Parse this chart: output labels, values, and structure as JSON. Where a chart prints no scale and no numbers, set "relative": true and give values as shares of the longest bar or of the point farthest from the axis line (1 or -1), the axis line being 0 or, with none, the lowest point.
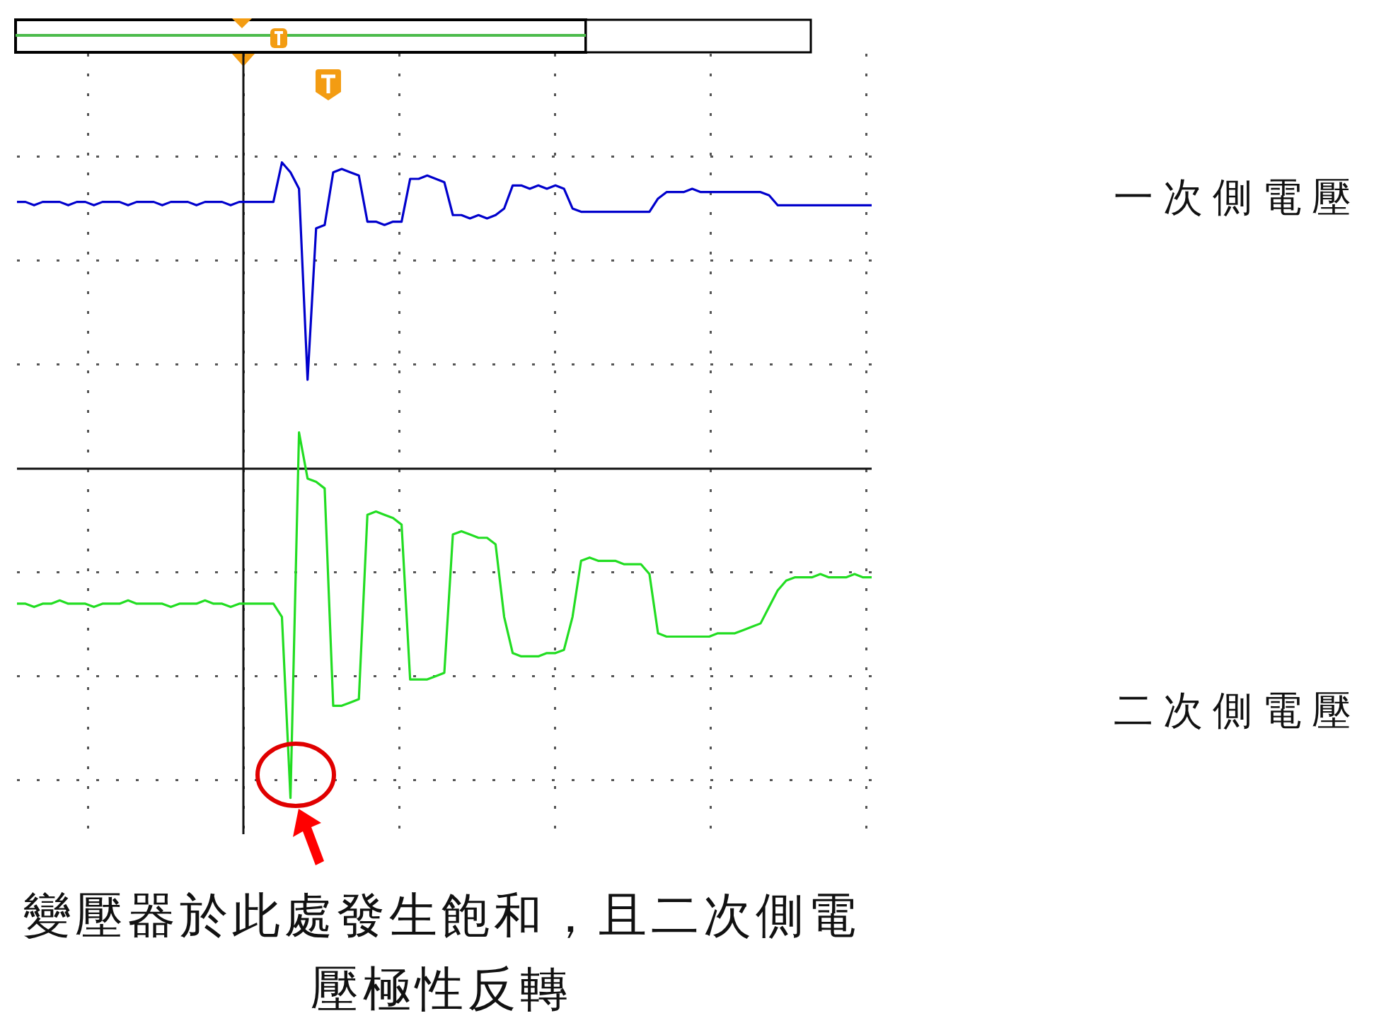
{
  "chart_data": {
    "type": "line",
    "relative": true,
    "grid": true,
    "categories": [
      null,
      null,
      null,
      null,
      null,
      null,
      null,
      null,
      null,
      null,
      null,
      null,
      null,
      null,
      null,
      null,
      null,
      null,
      null,
      null,
      null,
      null,
      null,
      null,
      null,
      null,
      null,
      null,
      null,
      null,
      null,
      null,
      null,
      null,
      null,
      null,
      null,
      null,
      null,
      null,
      null,
      null,
      null,
      null,
      null,
      null,
      null,
      null,
      null,
      null,
      null,
      null,
      null,
      null,
      null,
      null,
      null,
      null,
      null,
      null,
      null,
      null,
      null,
      null,
      null,
      null,
      null,
      null,
      null,
      null,
      null,
      null,
      null,
      null,
      null,
      null,
      null,
      null,
      null,
      null,
      null,
      null,
      null,
      null,
      null,
      null,
      null,
      null,
      null,
      null,
      null,
      null,
      null,
      null,
      null,
      null,
      null,
      null,
      null,
      null,
      null
    ],
    "series": [
      {
        "name": "一次側電壓",
        "color": "#0000cc",
        "values": [
          0.81,
          0.81,
          0.8,
          0.81,
          0.81,
          0.81,
          0.8,
          0.81,
          0.81,
          0.8,
          0.81,
          0.81,
          0.81,
          0.8,
          0.81,
          0.81,
          0.81,
          0.8,
          0.81,
          0.81,
          0.81,
          0.8,
          0.81,
          0.81,
          0.81,
          0.8,
          0.81,
          0.81,
          0.81,
          0.81,
          0.81,
          0.93,
          0.9,
          0.85,
          0.27,
          0.73,
          0.74,
          0.9,
          0.91,
          0.9,
          0.89,
          0.75,
          0.75,
          0.74,
          0.75,
          0.75,
          0.88,
          0.88,
          0.89,
          0.88,
          0.87,
          0.77,
          0.77,
          0.76,
          0.77,
          0.76,
          0.77,
          0.79,
          0.86,
          0.86,
          0.85,
          0.86,
          0.85,
          0.86,
          0.85,
          0.79,
          0.78,
          0.78,
          0.78,
          0.78,
          0.78,
          0.78,
          0.78,
          0.78,
          0.78,
          0.82,
          0.84,
          0.84,
          0.84,
          0.85,
          0.84,
          0.84,
          0.84,
          0.84,
          0.84,
          0.84,
          0.84,
          0.84,
          0.83,
          0.8,
          0.8,
          0.8,
          0.8,
          0.8,
          0.8,
          0.8,
          0.8,
          0.8,
          0.8,
          0.8,
          0.8
        ]
      },
      {
        "name": "二次側電壓",
        "color": "#22dd22",
        "values": [
          -0.41,
          -0.41,
          -0.42,
          -0.41,
          -0.41,
          -0.4,
          -0.41,
          -0.41,
          -0.41,
          -0.42,
          -0.41,
          -0.41,
          -0.41,
          -0.4,
          -0.41,
          -0.41,
          -0.41,
          -0.41,
          -0.42,
          -0.41,
          -0.41,
          -0.41,
          -0.4,
          -0.41,
          -0.41,
          -0.42,
          -0.41,
          -0.41,
          -0.41,
          -0.41,
          -0.41,
          -0.45,
          -1,
          0.11,
          -0.03,
          -0.04,
          -0.06,
          -0.72,
          -0.72,
          -0.71,
          -0.7,
          -0.14,
          -0.13,
          -0.14,
          -0.15,
          -0.17,
          -0.64,
          -0.64,
          -0.64,
          -0.63,
          -0.62,
          -0.2,
          -0.19,
          -0.2,
          -0.21,
          -0.21,
          -0.23,
          -0.45,
          -0.56,
          -0.57,
          -0.57,
          -0.57,
          -0.56,
          -0.56,
          -0.55,
          -0.45,
          -0.28,
          -0.27,
          -0.28,
          -0.28,
          -0.28,
          -0.29,
          -0.29,
          -0.29,
          -0.32,
          -0.5,
          -0.51,
          -0.51,
          -0.51,
          -0.51,
          -0.51,
          -0.51,
          -0.5,
          -0.5,
          -0.5,
          -0.49,
          -0.48,
          -0.47,
          -0.42,
          -0.37,
          -0.34,
          -0.33,
          -0.33,
          -0.33,
          -0.32,
          -0.33,
          -0.33,
          -0.33,
          -0.32,
          -0.33,
          -0.33
        ]
      }
    ],
    "annotations": [
      "變壓器於此處發生飽和，且二次側電壓極性反轉"
    ]
  }
}
